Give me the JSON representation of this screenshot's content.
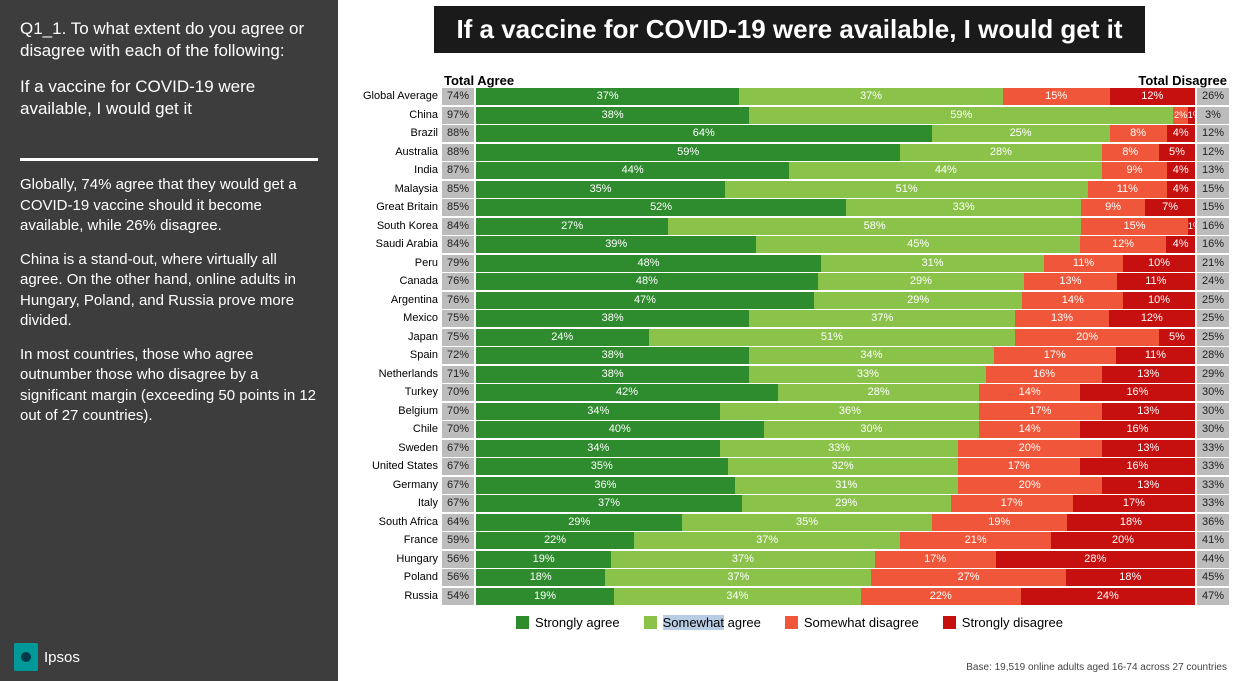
{
  "sidebar": {
    "q_label": "Q1_1. To what extent do you agree or disagree with each of the following:",
    "q_text": "If a vaccine for COVID-19 were available, I would get it",
    "summary": [
      "Globally, 74% agree that they would get a COVID-19 vaccine should it become available, while 26% disagree.",
      "China is a stand-out, where virtually all agree. On the other hand, online adults in Hungary, Poland, and Russia prove more divided.",
      "In most countries, those who agree outnumber those who disagree by a significant margin (exceeding 50 points in 12 out of 27 countries)."
    ],
    "logo_text": "Ipsos"
  },
  "title": "If a vaccine for COVID-19 were available, I would get it",
  "headers": {
    "agree": "Total Agree",
    "disagree": "Total Disagree"
  },
  "colors": {
    "strongly_agree": "#2e8b2e",
    "somewhat_agree": "#8bc34a",
    "somewhat_disagree": "#f0573a",
    "strongly_disagree": "#c60f0f",
    "pill": "#bcbcbc",
    "title_bg": "#1a1a1a",
    "sidebar_bg": "#3d3d3d"
  },
  "legend": {
    "strongly_agree": "Strongly agree",
    "somewhat_agree_a": "Somewhat",
    "somewhat_agree_b": " agree",
    "somewhat_disagree": "Somewhat disagree",
    "strongly_disagree": "Strongly disagree"
  },
  "basenote": "Base: 19,519 online adults aged 16-74 across 27 countries",
  "rows": [
    {
      "country": "Global Average",
      "agree": 74,
      "sa": 37,
      "sw": 37,
      "sd": 15,
      "sdis": 12,
      "disagree": 26,
      "hide": [
        "sdis"
      ]
    },
    {
      "country": "China",
      "agree": 97,
      "sa": 38,
      "sw": 59,
      "sd": 2,
      "sdis": 1,
      "disagree": 3,
      "hide": []
    },
    {
      "country": "Brazil",
      "agree": 88,
      "sa": 64,
      "sw": 25,
      "sd": 8,
      "sdis": 4,
      "disagree": 12,
      "hide": []
    },
    {
      "country": "Australia",
      "agree": 88,
      "sa": 59,
      "sw": 28,
      "sd": 8,
      "sdis": 5,
      "disagree": 12,
      "hide": []
    },
    {
      "country": "India",
      "agree": 87,
      "sa": 44,
      "sw": 44,
      "sd": 9,
      "sdis": 4,
      "disagree": 13,
      "hide": []
    },
    {
      "country": "Malaysia",
      "agree": 85,
      "sa": 35,
      "sw": 51,
      "sd": 11,
      "sdis": 4,
      "disagree": 15,
      "hide": []
    },
    {
      "country": "Great Britain",
      "agree": 85,
      "sa": 52,
      "sw": 33,
      "sd": 9,
      "sdis": 7,
      "disagree": 15,
      "hide": []
    },
    {
      "country": "South Korea",
      "agree": 84,
      "sa": 27,
      "sw": 58,
      "sd": 15,
      "sdis": 1,
      "disagree": 16,
      "hide": []
    },
    {
      "country": "Saudi Arabia",
      "agree": 84,
      "sa": 39,
      "sw": 45,
      "sd": 12,
      "sdis": 4,
      "disagree": 16,
      "hide": []
    },
    {
      "country": "Peru",
      "agree": 79,
      "sa": 48,
      "sw": 31,
      "sd": 11,
      "sdis": 10,
      "disagree": 21,
      "hide": []
    },
    {
      "country": "Canada",
      "agree": 76,
      "sa": 48,
      "sw": 29,
      "sd": 13,
      "sdis": 11,
      "disagree": 24,
      "hide": []
    },
    {
      "country": "Argentina",
      "agree": 76,
      "sa": 47,
      "sw": 29,
      "sd": 14,
      "sdis": 10,
      "disagree": 25,
      "hide": []
    },
    {
      "country": "Mexico",
      "agree": 75,
      "sa": 38,
      "sw": 37,
      "sd": 13,
      "sdis": 12,
      "disagree": 25,
      "hide": []
    },
    {
      "country": "Japan",
      "agree": 75,
      "sa": 24,
      "sw": 51,
      "sd": 20,
      "sdis": 5,
      "disagree": 25,
      "hide": []
    },
    {
      "country": "Spain",
      "agree": 72,
      "sa": 38,
      "sw": 34,
      "sd": 17,
      "sdis": 11,
      "disagree": 28,
      "hide": []
    },
    {
      "country": "Netherlands",
      "agree": 71,
      "sa": 38,
      "sw": 33,
      "sd": 16,
      "sdis": 13,
      "disagree": 29,
      "hide": []
    },
    {
      "country": "Turkey",
      "agree": 70,
      "sa": 42,
      "sw": 28,
      "sd": 14,
      "sdis": 16,
      "disagree": 30,
      "hide": []
    },
    {
      "country": "Belgium",
      "agree": 70,
      "sa": 34,
      "sw": 36,
      "sd": 17,
      "sdis": 13,
      "disagree": 30,
      "hide": []
    },
    {
      "country": "Chile",
      "agree": 70,
      "sa": 40,
      "sw": 30,
      "sd": 14,
      "sdis": 16,
      "disagree": 30,
      "hide": []
    },
    {
      "country": "Sweden",
      "agree": 67,
      "sa": 34,
      "sw": 33,
      "sd": 20,
      "sdis": 13,
      "disagree": 33,
      "hide": []
    },
    {
      "country": "United States",
      "agree": 67,
      "sa": 35,
      "sw": 32,
      "sd": 17,
      "sdis": 16,
      "disagree": 33,
      "hide": []
    },
    {
      "country": "Germany",
      "agree": 67,
      "sa": 36,
      "sw": 31,
      "sd": 20,
      "sdis": 13,
      "disagree": 33,
      "hide": []
    },
    {
      "country": "Italy",
      "agree": 67,
      "sa": 37,
      "sw": 29,
      "sd": 17,
      "sdis": 17,
      "disagree": 33,
      "hide": []
    },
    {
      "country": "South Africa",
      "agree": 64,
      "sa": 29,
      "sw": 35,
      "sd": 19,
      "sdis": 18,
      "disagree": 36,
      "hide": []
    },
    {
      "country": "France",
      "agree": 59,
      "sa": 22,
      "sw": 37,
      "sd": 21,
      "sdis": 20,
      "disagree": 41,
      "hide": []
    },
    {
      "country": "Hungary",
      "agree": 56,
      "sa": 19,
      "sw": 37,
      "sd": 17,
      "sdis": 28,
      "disagree": 44,
      "hide": []
    },
    {
      "country": "Poland",
      "agree": 56,
      "sa": 18,
      "sw": 37,
      "sd": 27,
      "sdis": 18,
      "disagree": 45,
      "hide": []
    },
    {
      "country": "Russia",
      "agree": 54,
      "sa": 19,
      "sw": 34,
      "sd": 22,
      "sdis": 24,
      "disagree": 47,
      "hide": []
    }
  ]
}
